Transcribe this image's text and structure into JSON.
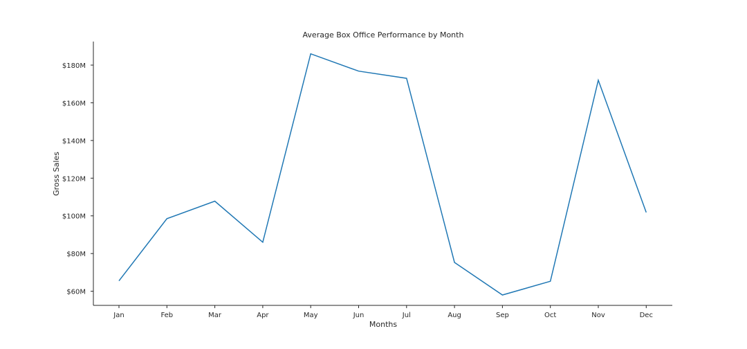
{
  "chart_data": {
    "type": "line",
    "title": "Average Box Office Performance by Month",
    "xlabel": "Months",
    "ylabel": "Gross Sales",
    "categories": [
      "Jan",
      "Feb",
      "Mar",
      "Apr",
      "May",
      "Jun",
      "Jul",
      "Aug",
      "Sep",
      "Oct",
      "Nov",
      "Dec"
    ],
    "series": [
      {
        "values": [
          65.5,
          98.5,
          107.8,
          86.0,
          186.0,
          176.8,
          173.0,
          75.3,
          58.0,
          65.3,
          172.0,
          101.8
        ]
      }
    ],
    "y_ticks": [
      60,
      80,
      100,
      120,
      140,
      160,
      180
    ],
    "y_tick_labels": [
      "$60M",
      "$80M",
      "$100M",
      "$120M",
      "$140M",
      "$160M",
      "$180M"
    ],
    "ylim": [
      52.5,
      192.5
    ],
    "y_unit": "$M",
    "grid": false,
    "line_color": "#1f77b4"
  }
}
